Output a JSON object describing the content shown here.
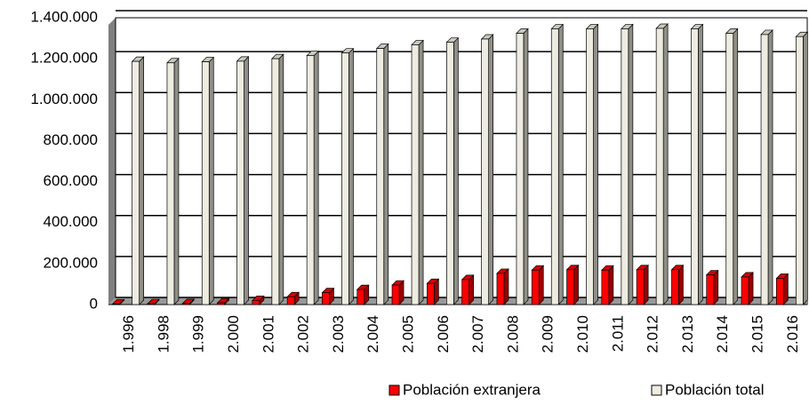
{
  "chart_data": {
    "type": "bar3d",
    "categories": [
      "1.996",
      "1.998",
      "1.999",
      "2.000",
      "2.001",
      "2.002",
      "2.003",
      "2.004",
      "2.005",
      "2.006",
      "2.007",
      "2.008",
      "2.009",
      "2.010",
      "2.011",
      "2.012",
      "2.013",
      "2.014",
      "2.015",
      "2.016"
    ],
    "series": [
      {
        "name": "Población extranjera",
        "color": "#ff0000",
        "values": [
          3000,
          4000,
          5000,
          8000,
          20000,
          38000,
          58000,
          73000,
          95000,
          103000,
          122000,
          152000,
          168000,
          170000,
          168000,
          170000,
          170000,
          145000,
          135000,
          128000
        ]
      },
      {
        "name": "Población total",
        "color": "#eeece1",
        "values": [
          1187000,
          1180000,
          1185000,
          1188000,
          1200000,
          1215000,
          1228000,
          1250000,
          1268000,
          1280000,
          1296000,
          1324000,
          1346000,
          1346000,
          1346000,
          1348000,
          1346000,
          1324000,
          1318000,
          1308000
        ]
      }
    ],
    "ylim": [
      0,
      1400000
    ],
    "yticks": [
      0,
      {
        "value": 200000,
        "label": "200.000"
      },
      {
        "value": 400000,
        "label": "400.000"
      },
      {
        "value": 600000,
        "label": "600.000"
      },
      {
        "value": 800000,
        "label": "800.000"
      },
      {
        "value": 1000000,
        "label": "1.000.000"
      },
      {
        "value": 1200000,
        "label": "1.200.000"
      },
      {
        "value": 1400000,
        "label": "1.400.000"
      }
    ],
    "grid": true
  }
}
